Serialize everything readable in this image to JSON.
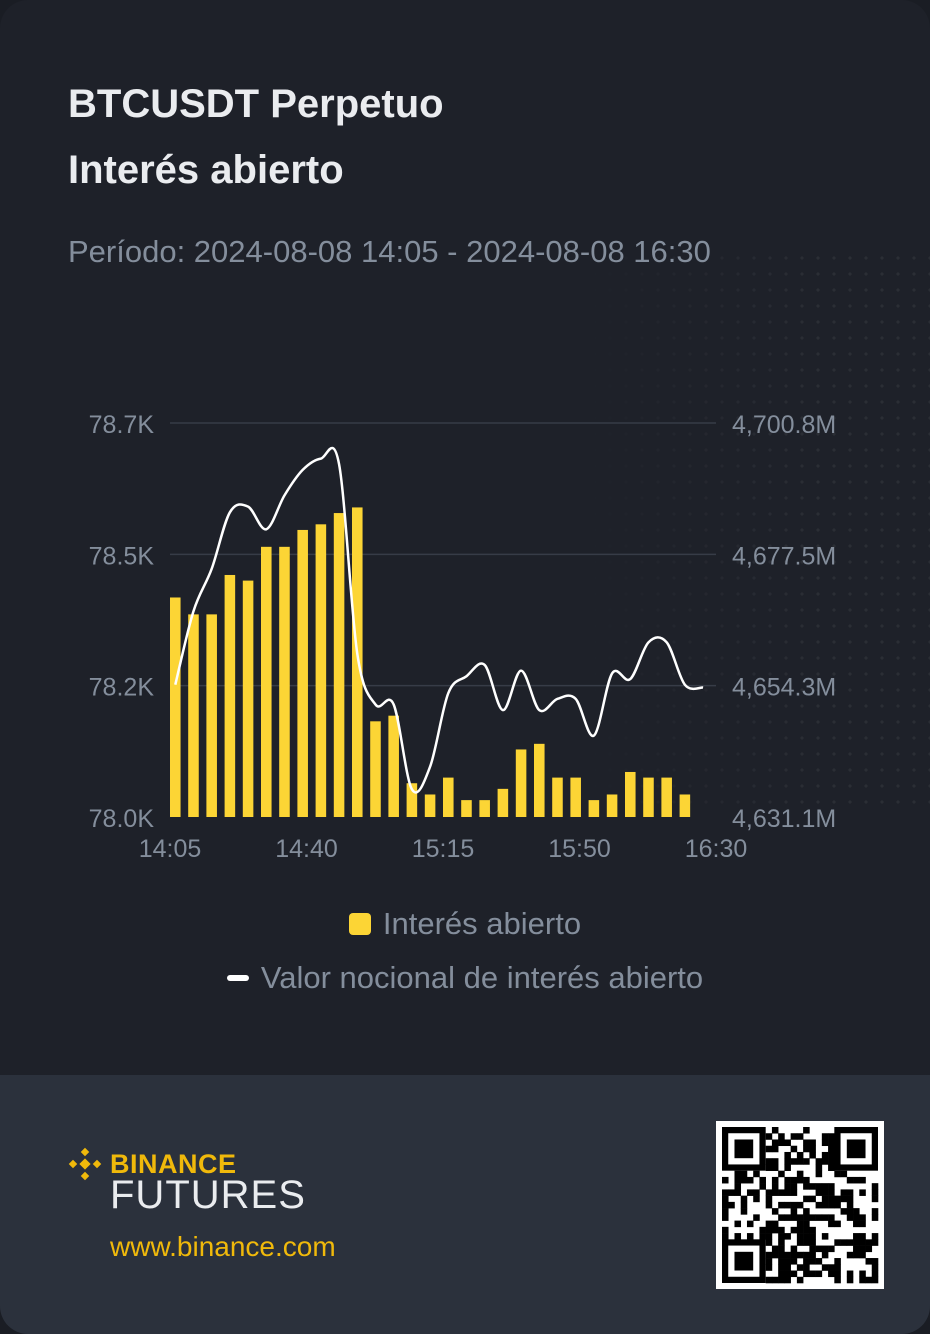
{
  "header": {
    "title": "BTCUSDT Perpetuo",
    "subtitle": "Interés abierto",
    "period": "Período: 2024-08-08 14:05 - 2024-08-08 16:30"
  },
  "legend": {
    "bar_label": "Interés abierto",
    "line_label": "Valor nocional de interés abierto"
  },
  "footer": {
    "brand": "BINANCE",
    "product": "FUTURES",
    "url": "www.binance.com"
  },
  "colors": {
    "bar": "#fcd535",
    "line": "#ffffff",
    "grid": "#373c47",
    "tick": "#848e9c",
    "brand": "#f0b90b"
  },
  "chart_data": {
    "type": "bar",
    "series": [
      {
        "name": "Interés abierto",
        "kind": "bar",
        "axis": "left",
        "values": [
          78.39,
          78.36,
          78.36,
          78.43,
          78.42,
          78.48,
          78.48,
          78.51,
          78.52,
          78.54,
          78.55,
          78.17,
          78.18,
          78.06,
          78.04,
          78.07,
          78.03,
          78.03,
          78.05,
          78.12,
          78.13,
          78.07,
          78.07,
          78.03,
          78.04,
          78.08,
          78.07,
          78.07,
          78.04,
          77.99
        ]
      },
      {
        "name": "Valor nocional de interés abierto",
        "kind": "line",
        "axis": "right",
        "values": [
          4654.5,
          4667.5,
          4675.0,
          4685.0,
          4686.0,
          4682.0,
          4688.0,
          4692.5,
          4694.5,
          4693.5,
          4660.0,
          4651.0,
          4651.0,
          4636.0,
          4640.0,
          4653.0,
          4656.0,
          4658.0,
          4650.0,
          4657.0,
          4650.0,
          4652.0,
          4652.0,
          4645.5,
          4656.5,
          4655.5,
          4662.0,
          4662.0,
          4654.5,
          4654.0
        ]
      }
    ],
    "x_tick_labels": [
      "14:05",
      "14:40",
      "15:15",
      "15:50",
      "16:30"
    ],
    "y_left_ticks": [
      "78.0K",
      "78.2K",
      "78.5K",
      "78.7K"
    ],
    "y_left_range": [
      78.0,
      78.7
    ],
    "y_right_ticks": [
      "4,631.1M",
      "4,654.3M",
      "4,677.5M",
      "4,700.8M"
    ],
    "y_right_range": [
      4631.1,
      4700.8
    ],
    "grid": true,
    "legend_position": "bottom-center"
  }
}
